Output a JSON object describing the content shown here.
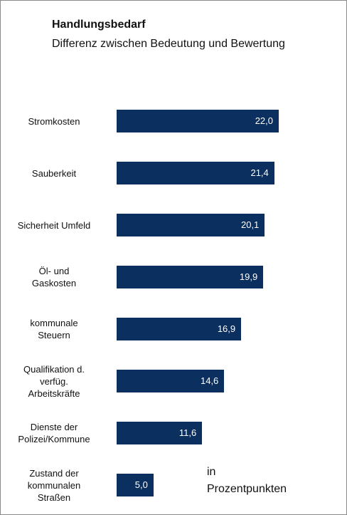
{
  "chart_data": {
    "type": "bar",
    "orientation": "horizontal",
    "title": "Handlungsbedarf",
    "subtitle": "Differenz zwischen Bedeutung und Bewertung",
    "unit_label": [
      "in",
      "Prozentpunkten"
    ],
    "categories": [
      [
        "Stromkosten"
      ],
      [
        "Sauberkeit"
      ],
      [
        "Sicherheit Umfeld"
      ],
      [
        "Öl- und",
        "Gaskosten"
      ],
      [
        "kommunale",
        "Steuern"
      ],
      [
        "Qualifikation d.",
        "verfüg.",
        "Arbeitskräfte"
      ],
      [
        "Dienste der",
        "Polizei/Kommune"
      ],
      [
        "Zustand der",
        "kommunalen",
        "Straßen"
      ]
    ],
    "values": [
      22.0,
      21.4,
      20.1,
      19.9,
      16.9,
      14.6,
      11.6,
      5.0
    ],
    "value_labels": [
      "22,0",
      "21,4",
      "20,1",
      "19,9",
      "16,9",
      "14,6",
      "11,6",
      "5,0"
    ],
    "xlim": [
      0,
      22.0
    ],
    "bar_color": "#0b2f5e",
    "grid": false,
    "legend": "none"
  }
}
